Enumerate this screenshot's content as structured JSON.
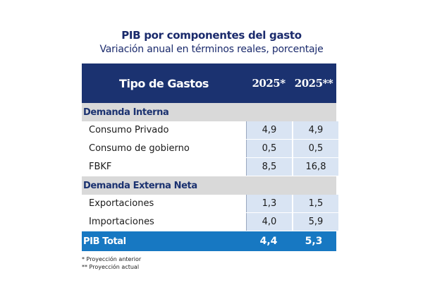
{
  "title": "PIB por componentes del gasto",
  "subtitle": "Variación anual en términos reales, porcentaje",
  "table": {
    "header": {
      "label": "Tipo de Gastos",
      "col_a": "2025*",
      "col_b": "2025**"
    },
    "sections": [
      {
        "name": "Demanda Interna",
        "rows": [
          {
            "label": "Consumo Privado",
            "a": "4,9",
            "b": "4,9"
          },
          {
            "label": "Consumo de gobierno",
            "a": "0,5",
            "b": "0,5"
          },
          {
            "label": "FBKF",
            "a": "8,5",
            "b": "16,8"
          }
        ]
      },
      {
        "name": "Demanda Externa Neta",
        "rows": [
          {
            "label": "Exportaciones",
            "a": "1,3",
            "b": "1,5"
          },
          {
            "label": "Importaciones",
            "a": "4,0",
            "b": "5,9"
          }
        ]
      }
    ],
    "total": {
      "label": "PIB Total",
      "a": "4,4",
      "b": "5,3"
    }
  },
  "notes": [
    "*   Proyección anterior",
    "** Proyección actual"
  ],
  "colors": {
    "header_bg": "#1b3270",
    "section_bg": "#d9d9d9",
    "value_bg": "#d9e4f3",
    "total_bg": "#1778c2",
    "title_color": "#1a2a6c"
  }
}
